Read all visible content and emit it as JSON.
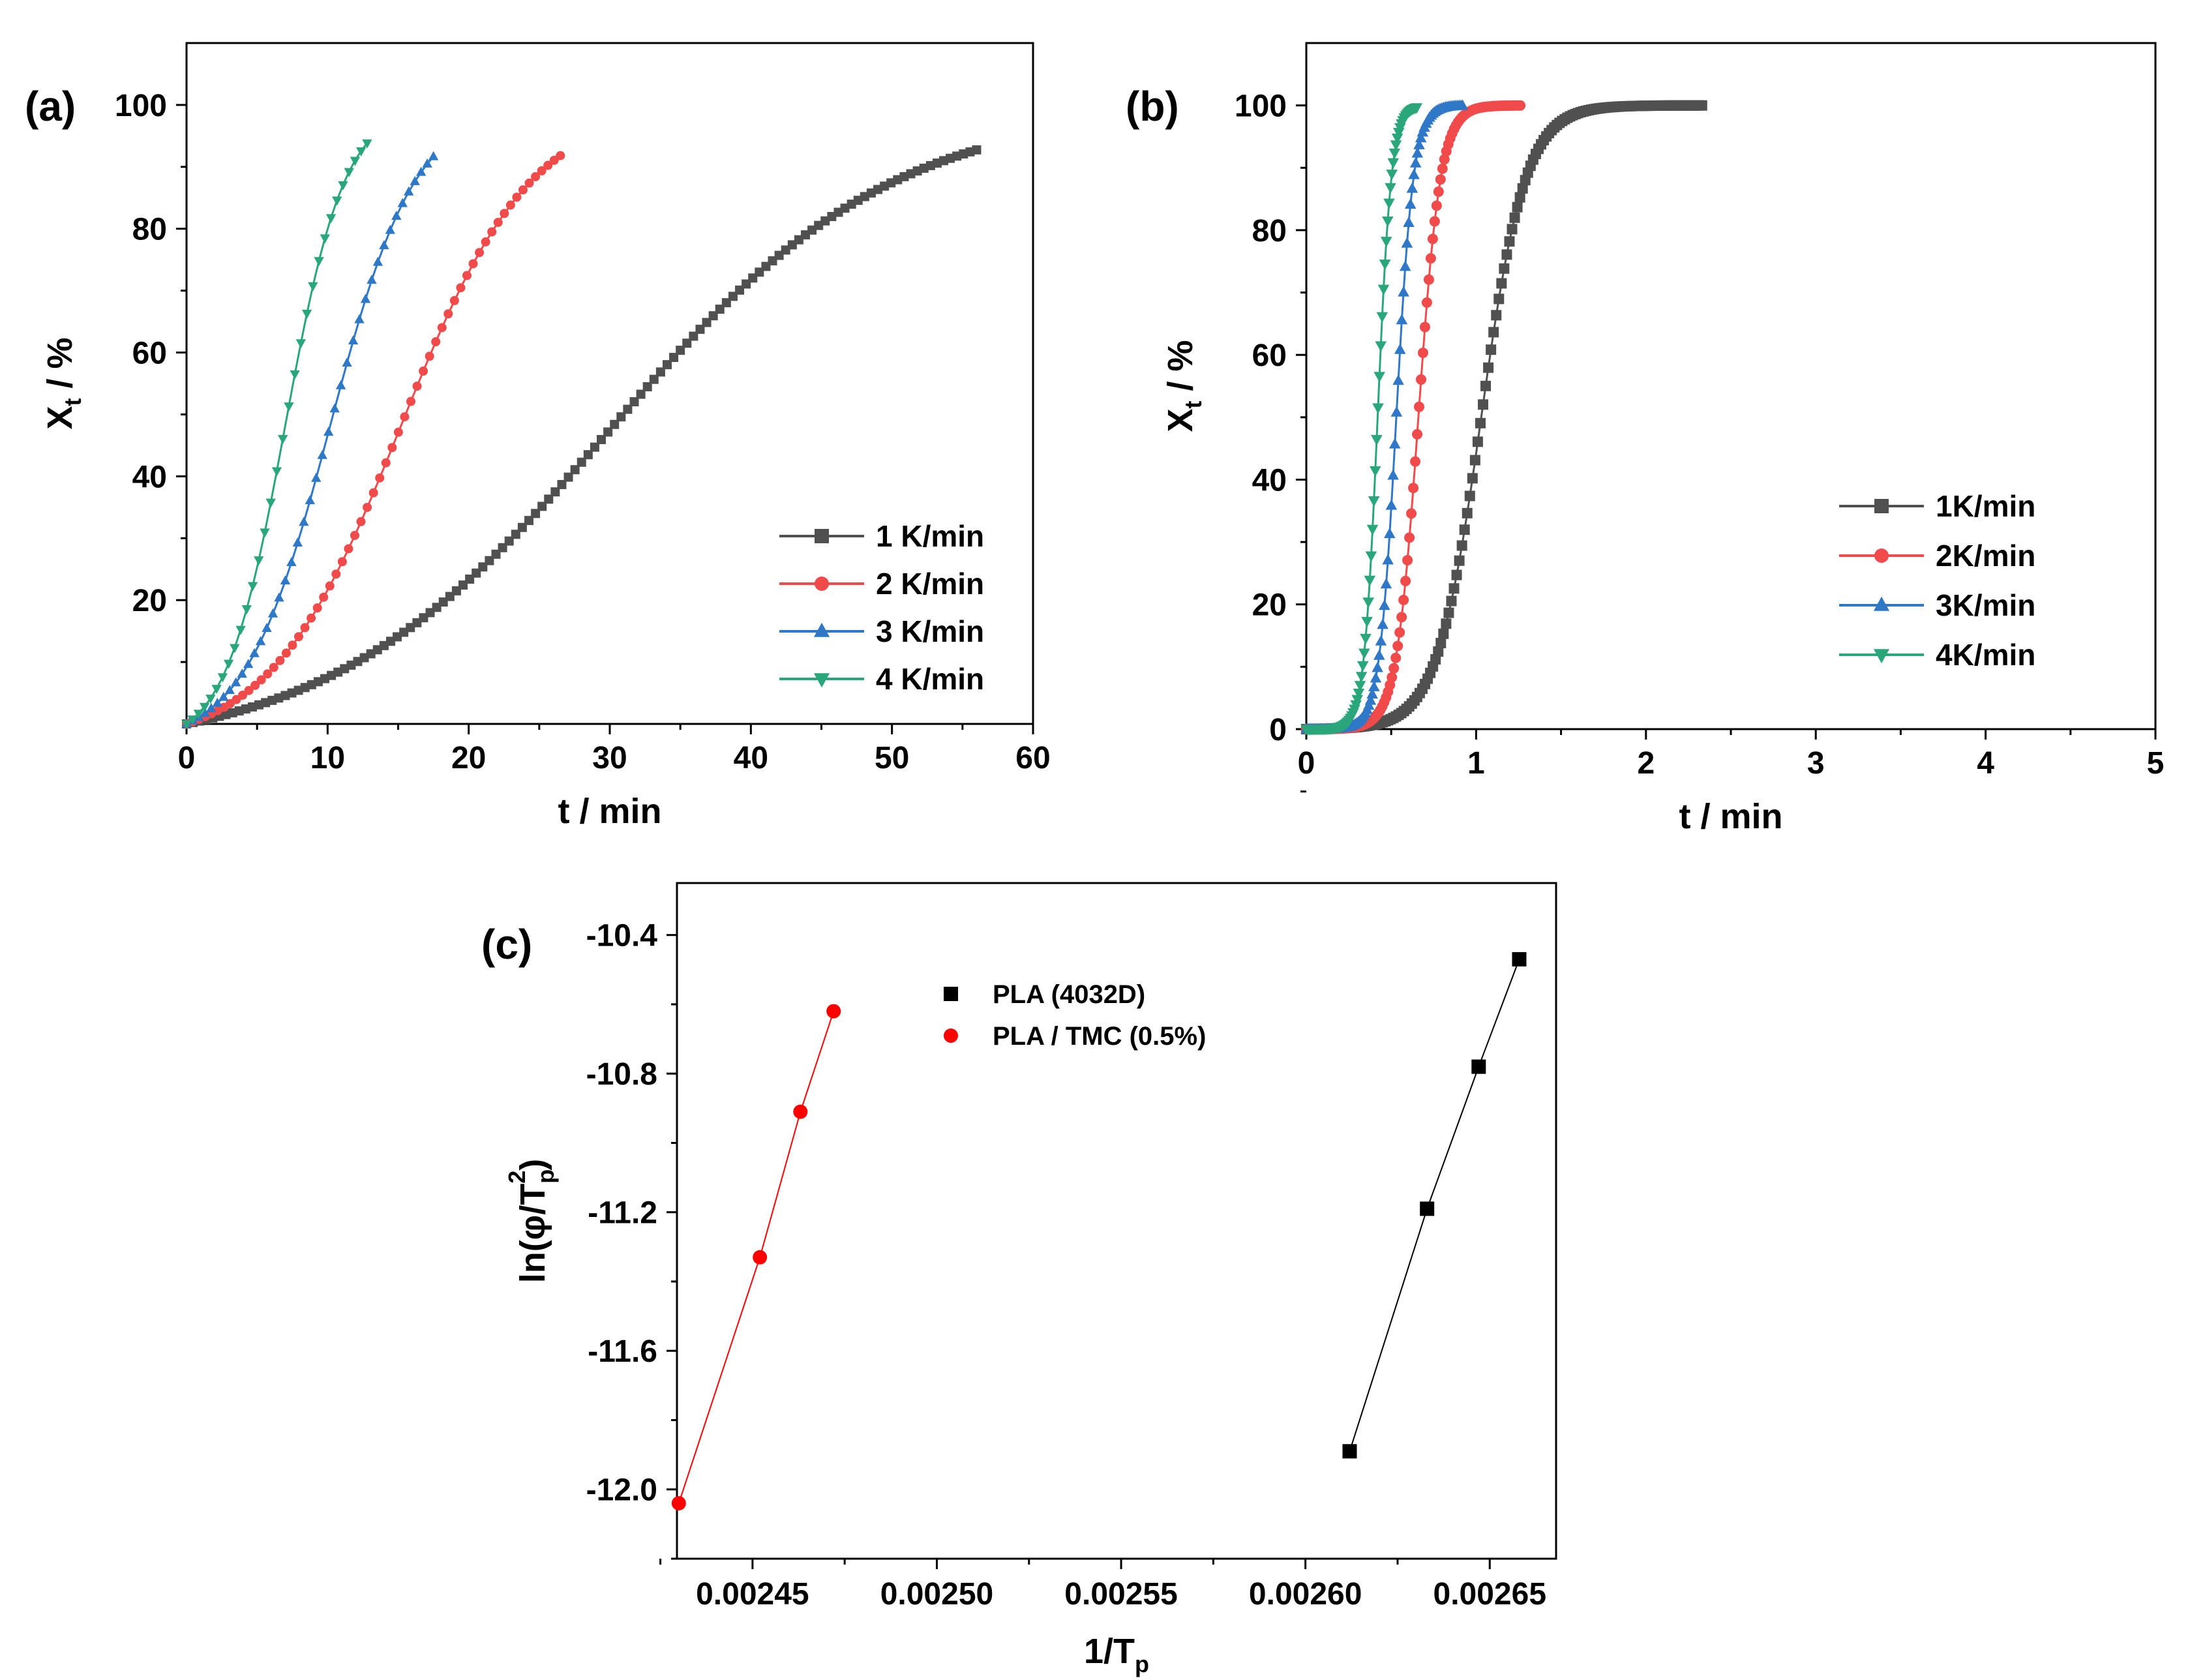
{
  "chart_data": [
    {
      "panel": "(a)",
      "type": "line",
      "xlabel": "t / min",
      "ylabel": {
        "main": "X",
        "sub": "t",
        "tail": " / %"
      },
      "xlim": [
        0,
        60
      ],
      "ylim": [
        0,
        110
      ],
      "xticks": [
        0,
        10,
        20,
        30,
        40,
        50,
        60
      ],
      "yticks": [
        20,
        40,
        60,
        80,
        100
      ],
      "series": [
        {
          "name": "1 K/min",
          "color": "#505050",
          "marker": "square",
          "tmax": 56,
          "t_half": 30,
          "width": 10
        },
        {
          "name": "2 K/min",
          "color": "#f04a4a",
          "marker": "circle",
          "tmax": 26.5,
          "t_half": 15.2,
          "width": 4.6
        },
        {
          "name": "3 K/min",
          "color": "#2f78c8",
          "marker": "triangle-up",
          "tmax": 17.5,
          "t_half": 10.2,
          "width": 3.0
        },
        {
          "name": "4 K/min",
          "color": "#2aa77a",
          "marker": "triangle-down",
          "tmax": 12.8,
          "t_half": 7.0,
          "width": 2.1
        }
      ],
      "legend": "lower-right"
    },
    {
      "panel": "(b)",
      "type": "line",
      "xlabel": "t / min",
      "ylabel": {
        "main": "X",
        "sub": "t",
        "tail": " / %"
      },
      "xlim": [
        0,
        5
      ],
      "ylim": [
        0,
        110
      ],
      "xticks": [
        0,
        1,
        2,
        3,
        4,
        5
      ],
      "yticks": [
        0,
        20,
        40,
        60,
        80,
        100
      ],
      "series": [
        {
          "name": "1K/min",
          "color": "#505050",
          "marker": "square",
          "tmax": 2.33,
          "t_half": 1.03,
          "width": 0.13
        },
        {
          "name": "2K/min",
          "color": "#f04a4a",
          "marker": "circle",
          "tmax": 1.26,
          "t_half": 0.66,
          "width": 0.065
        },
        {
          "name": "3K/min",
          "color": "#2f78c8",
          "marker": "triangle-up",
          "tmax": 0.92,
          "t_half": 0.53,
          "width": 0.05
        },
        {
          "name": "4K/min",
          "color": "#2aa77a",
          "marker": "triangle-down",
          "tmax": 0.65,
          "t_half": 0.42,
          "width": 0.04
        }
      ],
      "legend": "lower-right"
    },
    {
      "panel": "(c)",
      "type": "scatter",
      "xlabel": {
        "main": "1/T",
        "sub": "p"
      },
      "ylabel": {
        "main": "ln(φ/T",
        "sub": "p",
        "sup": "2",
        "tail": ")"
      },
      "xlim": [
        0.0024295,
        0.002668
      ],
      "ylim": [
        -12.2,
        -10.25
      ],
      "xticks": [
        "0.00245",
        "0.00250",
        "0.00255",
        "0.00260",
        "0.00265"
      ],
      "xtick_values": [
        0.00245,
        0.0025,
        0.00255,
        0.0026,
        0.00265
      ],
      "yticks": [
        "-10.4",
        "-10.8",
        "-11.2",
        "-11.6",
        "-12.0"
      ],
      "ytick_values": [
        -10.4,
        -10.8,
        -11.2,
        -11.6,
        -12.0
      ],
      "series": [
        {
          "name": "PLA (4032D)",
          "color": "#000000",
          "marker": "square",
          "x": [
            0.002612,
            0.002633,
            0.002647,
            0.002658
          ],
          "y": [
            -11.89,
            -11.19,
            -10.78,
            -10.47
          ]
        },
        {
          "name": "PLA / TMC (0.5%)",
          "color": "#ff0000",
          "marker": "circle",
          "x": [
            0.00243,
            0.002452,
            0.002463,
            0.002472
          ],
          "y": [
            -12.04,
            -11.33,
            -10.91,
            -10.62
          ]
        }
      ],
      "legend": "top-center"
    }
  ]
}
